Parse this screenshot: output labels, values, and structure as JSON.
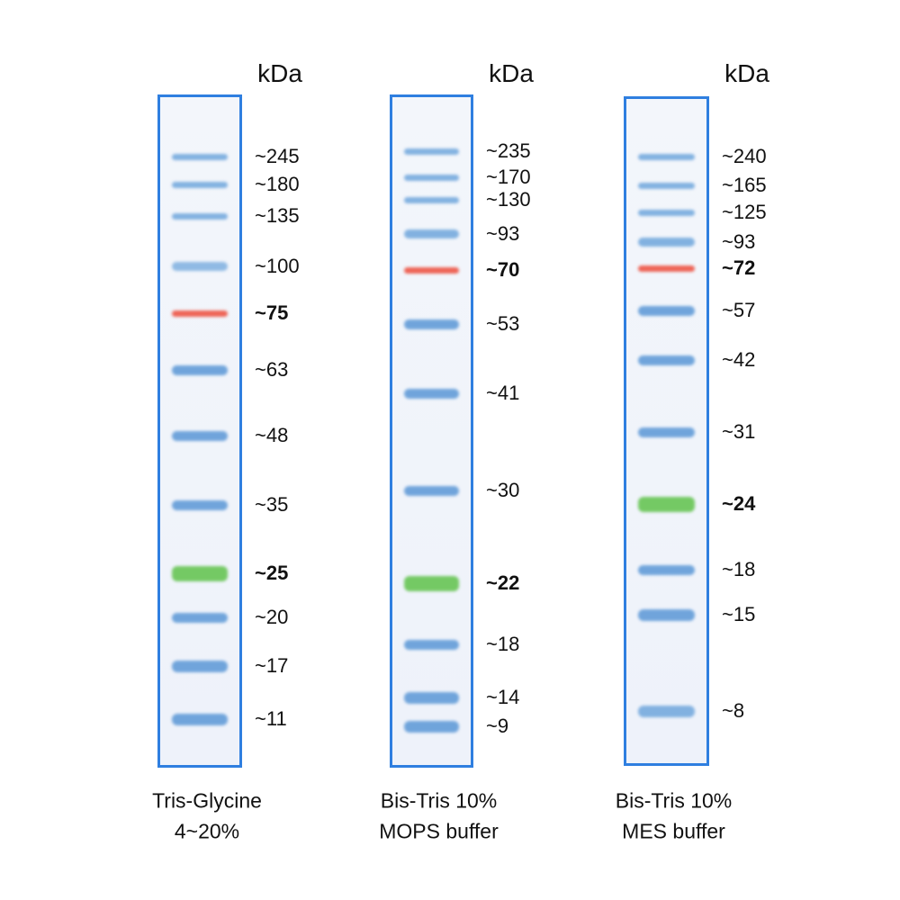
{
  "lanes": [
    {
      "unit": "kDa",
      "caption": [
        "Tris-Glycine",
        "4~20%"
      ],
      "bands": [
        {
          "label": "~245",
          "color": "#6fa6dc"
        },
        {
          "label": "~180",
          "color": "#6fa6dc"
        },
        {
          "label": "~135",
          "color": "#6fa6dc"
        },
        {
          "label": "~100",
          "color": "#7fb0e0"
        },
        {
          "label": "~75",
          "color": "#ee4b3a"
        },
        {
          "label": "~63",
          "color": "#5a97d6"
        },
        {
          "label": "~48",
          "color": "#5a97d6"
        },
        {
          "label": "~35",
          "color": "#5a97d6"
        },
        {
          "label": "~25",
          "color": "#5fc24a"
        },
        {
          "label": "~20",
          "color": "#5a97d6"
        },
        {
          "label": "~17",
          "color": "#5a97d6"
        },
        {
          "label": "~11",
          "color": "#5a97d6"
        }
      ]
    },
    {
      "unit": "kDa",
      "caption": [
        "Bis-Tris 10%",
        "MOPS buffer"
      ],
      "bands": [
        {
          "label": "~235",
          "color": "#6fa6dc"
        },
        {
          "label": "~170",
          "color": "#6fa6dc"
        },
        {
          "label": "~130",
          "color": "#6fa6dc"
        },
        {
          "label": "~93",
          "color": "#6fa6dc"
        },
        {
          "label": "~70",
          "color": "#ee4b3a"
        },
        {
          "label": "~53",
          "color": "#5a97d6"
        },
        {
          "label": "~41",
          "color": "#5a97d6"
        },
        {
          "label": "~30",
          "color": "#5a97d6"
        },
        {
          "label": "~22",
          "color": "#5fc24a"
        },
        {
          "label": "~18",
          "color": "#5a97d6"
        },
        {
          "label": "~14",
          "color": "#5a97d6"
        },
        {
          "label": "~9",
          "color": "#5a97d6"
        }
      ]
    },
    {
      "unit": "kDa",
      "caption": [
        "Bis-Tris 10%",
        "MES buffer"
      ],
      "bands": [
        {
          "label": "~240",
          "color": "#6fa6dc"
        },
        {
          "label": "~165",
          "color": "#6fa6dc"
        },
        {
          "label": "~125",
          "color": "#6fa6dc"
        },
        {
          "label": "~93",
          "color": "#6fa6dc"
        },
        {
          "label": "~72",
          "color": "#ee4b3a"
        },
        {
          "label": "~57",
          "color": "#5a97d6"
        },
        {
          "label": "~42",
          "color": "#5a97d6"
        },
        {
          "label": "~31",
          "color": "#5a97d6"
        },
        {
          "label": "~24",
          "color": "#5fc24a"
        },
        {
          "label": "~18",
          "color": "#5a97d6"
        },
        {
          "label": "~15",
          "color": "#5a97d6"
        },
        {
          "label": "~8",
          "color": "#6fa6dc"
        }
      ]
    }
  ]
}
